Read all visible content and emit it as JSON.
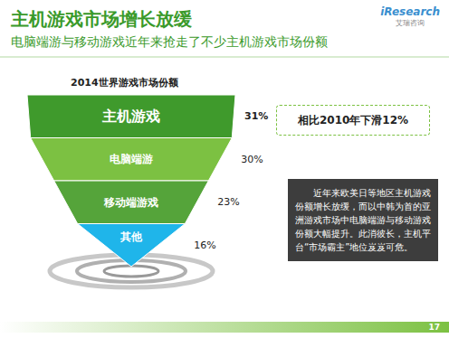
{
  "header": {
    "title": "主机游戏市场增长放缓",
    "subtitle": "电脑端游与移动游戏近年来抢走了不少主机游戏市场份额"
  },
  "logo": {
    "text": "iResearch",
    "subtext": "艾瑞咨询"
  },
  "chart_data": {
    "type": "funnel",
    "title": "2014世界游戏市场份额",
    "categories": [
      "主机游戏",
      "电脑端游",
      "移动端游戏",
      "其他"
    ],
    "values": [
      31,
      30,
      23,
      16
    ],
    "value_labels": [
      "31%",
      "30%",
      "23%",
      "16%"
    ],
    "colors": [
      "#3f9a2c",
      "#7cc142",
      "#55a43a",
      "#1fb5ea"
    ],
    "data_labels": true,
    "annotations": [
      "相比2010年下滑12%"
    ]
  },
  "note": "近年来欧美日等地区主机游戏份额增长放缓，而以中韩为首的亚洲游戏市场中电脑端游与移动游戏份额大幅提升。此消彼长，主机平台“市场霸主”地位岌岌可危。",
  "page": 17
}
